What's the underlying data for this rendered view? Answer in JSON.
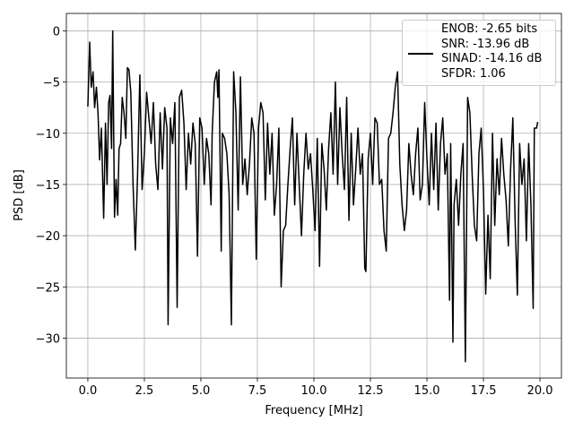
{
  "chart_data": {
    "type": "line",
    "xlabel": "Frequency [MHz]",
    "ylabel": "PSD [dB]",
    "xlim": [
      -0.95,
      20.95
    ],
    "ylim": [
      -33.9,
      1.7
    ],
    "xticks": [
      {
        "value": 0,
        "label": "0.0"
      },
      2.5,
      {
        "value": 5,
        "label": "5.0"
      },
      7.5,
      {
        "value": 10,
        "label": "10.0"
      },
      12.5,
      {
        "value": 15,
        "label": "15.0"
      },
      17.5,
      {
        "value": 20,
        "label": "20.0"
      }
    ],
    "yticks": [
      {
        "value": 0,
        "label": "0"
      },
      {
        "value": -5,
        "label": "−5"
      },
      {
        "value": -10,
        "label": "−10"
      },
      {
        "value": -15,
        "label": "−15"
      },
      {
        "value": -20,
        "label": "−20"
      },
      {
        "value": -25,
        "label": "−25"
      },
      {
        "value": -30,
        "label": "−30"
      }
    ],
    "grid": true,
    "legend": "upper right",
    "x": [
      0.0,
      0.08,
      0.15,
      0.23,
      0.3,
      0.38,
      0.45,
      0.52,
      0.6,
      0.7,
      0.78,
      0.85,
      0.92,
      0.98,
      1.05,
      1.1,
      1.18,
      1.25,
      1.32,
      1.38,
      1.45,
      1.52,
      1.6,
      1.68,
      1.75,
      1.82,
      1.9,
      2.0,
      2.1,
      2.2,
      2.3,
      2.4,
      2.5,
      2.6,
      2.7,
      2.8,
      2.9,
      3.0,
      3.1,
      3.2,
      3.3,
      3.4,
      3.5,
      3.55,
      3.65,
      3.75,
      3.85,
      3.95,
      4.05,
      4.15,
      4.25,
      4.35,
      4.45,
      4.55,
      4.65,
      4.75,
      4.85,
      4.95,
      5.05,
      5.15,
      5.25,
      5.35,
      5.45,
      5.5,
      5.6,
      5.7,
      5.75,
      5.8,
      5.9,
      5.95,
      6.05,
      6.15,
      6.25,
      6.35,
      6.45,
      6.55,
      6.65,
      6.75,
      6.85,
      6.95,
      7.05,
      7.15,
      7.25,
      7.35,
      7.45,
      7.55,
      7.65,
      7.75,
      7.85,
      7.95,
      8.05,
      8.15,
      8.25,
      8.35,
      8.45,
      8.55,
      8.65,
      8.75,
      8.85,
      8.95,
      9.05,
      9.15,
      9.25,
      9.35,
      9.45,
      9.55,
      9.65,
      9.75,
      9.85,
      9.95,
      10.05,
      10.15,
      10.25,
      10.35,
      10.45,
      10.55,
      10.65,
      10.75,
      10.85,
      10.95,
      11.05,
      11.15,
      11.25,
      11.35,
      11.45,
      11.55,
      11.65,
      11.75,
      11.85,
      11.95,
      12.05,
      12.15,
      12.25,
      12.3,
      12.4,
      12.5,
      12.6,
      12.7,
      12.8,
      12.9,
      13.0,
      13.1,
      13.2,
      13.3,
      13.4,
      13.5,
      13.6,
      13.7,
      13.8,
      13.9,
      14.0,
      14.1,
      14.2,
      14.3,
      14.4,
      14.5,
      14.6,
      14.7,
      14.8,
      14.9,
      15.0,
      15.1,
      15.2,
      15.3,
      15.4,
      15.5,
      15.6,
      15.7,
      15.8,
      15.9,
      16.0,
      16.05,
      16.15,
      16.2,
      16.3,
      16.4,
      16.5,
      16.6,
      16.7,
      16.75,
      16.8,
      16.9,
      17.0,
      17.1,
      17.2,
      17.3,
      17.4,
      17.5,
      17.6,
      17.7,
      17.8,
      17.9,
      18.0,
      18.1,
      18.2,
      18.3,
      18.4,
      18.5,
      18.6,
      18.7,
      18.8,
      18.9,
      19.0,
      19.1,
      19.2,
      19.3,
      19.4,
      19.5,
      19.6,
      19.7,
      19.75,
      19.85,
      19.9
    ],
    "series": [
      {
        "name": "ENOB: -2.65 bits\nSNR: -13.96 dB\nSINAD: -14.16 dB\nSFDR: 1.06",
        "color": "#000000",
        "values": [
          -7.4,
          -1.1,
          -5.5,
          -4.0,
          -7.5,
          -5.5,
          -8.0,
          -12.6,
          -9.5,
          -18.3,
          -9.0,
          -15.0,
          -7.0,
          -6.3,
          -11.5,
          0.0,
          -18.2,
          -14.5,
          -18.0,
          -11.5,
          -11.0,
          -6.5,
          -8.0,
          -10.5,
          -3.6,
          -3.8,
          -6.0,
          -15.0,
          -21.4,
          -14.0,
          -4.3,
          -15.5,
          -12.0,
          -6.0,
          -8.5,
          -11.0,
          -7.0,
          -13.0,
          -15.5,
          -8.0,
          -13.5,
          -7.5,
          -9.5,
          -28.7,
          -8.5,
          -11.0,
          -7.0,
          -27.0,
          -6.5,
          -5.8,
          -9.0,
          -15.5,
          -10.0,
          -13.0,
          -9.0,
          -11.0,
          -22.0,
          -8.5,
          -9.5,
          -15.0,
          -10.5,
          -12.0,
          -17.0,
          -10.0,
          -5.0,
          -4.0,
          -6.5,
          -3.8,
          -21.5,
          -10.0,
          -10.5,
          -12.0,
          -16.0,
          -28.7,
          -4.0,
          -8.0,
          -17.5,
          -4.5,
          -15.0,
          -12.5,
          -16.0,
          -13.0,
          -8.5,
          -10.0,
          -22.3,
          -9.5,
          -7.0,
          -8.0,
          -16.5,
          -9.0,
          -14.0,
          -10.0,
          -18.0,
          -15.0,
          -9.5,
          -25.0,
          -19.5,
          -19.0,
          -15.0,
          -11.5,
          -8.5,
          -17.0,
          -10.0,
          -15.0,
          -20.0,
          -14.0,
          -10.0,
          -13.5,
          -12.0,
          -15.5,
          -19.5,
          -10.5,
          -23.0,
          -11.0,
          -13.5,
          -17.5,
          -11.5,
          -8.0,
          -14.0,
          -5.0,
          -15.0,
          -7.5,
          -12.0,
          -15.5,
          -6.5,
          -18.5,
          -10.0,
          -17.0,
          -13.5,
          -9.5,
          -14.0,
          -12.0,
          -23.2,
          -23.5,
          -12.5,
          -10.0,
          -15.0,
          -8.5,
          -9.0,
          -15.0,
          -14.5,
          -19.5,
          -21.5,
          -10.5,
          -10.0,
          -8.0,
          -5.5,
          -4.0,
          -13.0,
          -17.0,
          -19.5,
          -17.5,
          -11.0,
          -14.0,
          -16.0,
          -12.0,
          -9.5,
          -16.5,
          -15.0,
          -7.0,
          -12.5,
          -17.0,
          -10.0,
          -15.5,
          -9.0,
          -17.5,
          -11.0,
          -8.5,
          -14.0,
          -12.0,
          -26.3,
          -11.0,
          -30.4,
          -17.0,
          -14.5,
          -19.0,
          -14.0,
          -11.0,
          -32.3,
          -20.0,
          -6.5,
          -8.0,
          -14.0,
          -19.0,
          -20.5,
          -12.0,
          -9.5,
          -15.5,
          -25.7,
          -18.0,
          -24.2,
          -10.0,
          -19.0,
          -12.5,
          -16.0,
          -10.5,
          -14.0,
          -16.5,
          -21.0,
          -13.5,
          -8.5,
          -18.5,
          -25.8,
          -11.0,
          -15.0,
          -12.5,
          -20.5,
          -11.0,
          -17.0,
          -27.1,
          -9.5,
          -9.5,
          -8.9
        ]
      }
    ]
  }
}
